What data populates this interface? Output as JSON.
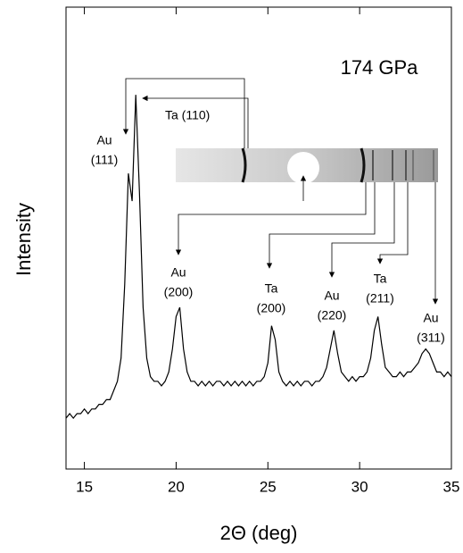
{
  "chart_data": {
    "type": "line",
    "color": "#000000",
    "xlabel": "2Θ (deg)",
    "ylabel": "Intensity",
    "annotation": "174 GPa",
    "peak_labels": [
      [
        "Ta (110)"
      ],
      [
        "Au",
        "(111)"
      ],
      [
        "Au",
        "(200)"
      ],
      [
        "Ta",
        "(200)"
      ],
      [
        "Au",
        "(220)"
      ],
      [
        "Ta",
        "(211)"
      ],
      [
        "Au",
        "(311)"
      ]
    ],
    "xlim": [
      14,
      35
    ],
    "xticks": [
      15,
      20,
      25,
      30,
      35
    ],
    "ylim": [
      0,
      100
    ],
    "x": [
      14.0,
      14.2,
      14.4,
      14.6,
      14.8,
      15.0,
      15.2,
      15.4,
      15.6,
      15.8,
      16.0,
      16.2,
      16.4,
      16.6,
      16.8,
      17.0,
      17.2,
      17.4,
      17.6,
      17.8,
      18.0,
      18.2,
      18.4,
      18.6,
      18.8,
      19.0,
      19.2,
      19.4,
      19.6,
      19.8,
      20.0,
      20.2,
      20.4,
      20.6,
      20.8,
      21.0,
      21.2,
      21.4,
      21.6,
      21.8,
      22.0,
      22.2,
      22.4,
      22.6,
      22.8,
      23.0,
      23.2,
      23.4,
      23.6,
      23.8,
      24.0,
      24.2,
      24.4,
      24.6,
      24.8,
      25.0,
      25.2,
      25.4,
      25.6,
      25.8,
      26.0,
      26.2,
      26.4,
      26.6,
      26.8,
      27.0,
      27.2,
      27.4,
      27.6,
      27.8,
      28.0,
      28.2,
      28.4,
      28.6,
      28.8,
      29.0,
      29.2,
      29.4,
      29.6,
      29.8,
      30.0,
      30.2,
      30.4,
      30.6,
      30.8,
      31.0,
      31.2,
      31.4,
      31.6,
      31.8,
      32.0,
      32.2,
      32.4,
      32.6,
      32.8,
      33.0,
      33.2,
      33.4,
      33.6,
      33.8,
      34.0,
      34.2,
      34.4,
      34.6,
      34.8,
      35.0
    ],
    "values": [
      11,
      12,
      11,
      12,
      12,
      13,
      12,
      13,
      13,
      14,
      14,
      15,
      15,
      17,
      19,
      24,
      40,
      64,
      58,
      81,
      60,
      35,
      24,
      20,
      19,
      19,
      18,
      19,
      21,
      26,
      33,
      35,
      26,
      21,
      19,
      19,
      18,
      19,
      18,
      19,
      18,
      19,
      19,
      18,
      19,
      18,
      19,
      18,
      19,
      18,
      19,
      18,
      19,
      19,
      20,
      23,
      31,
      28,
      21,
      19,
      18,
      19,
      18,
      19,
      18,
      19,
      19,
      18,
      19,
      19,
      20,
      22,
      26,
      30,
      25,
      21,
      20,
      19,
      20,
      19,
      20,
      20,
      21,
      24,
      30,
      33,
      27,
      22,
      21,
      20,
      20,
      21,
      20,
      21,
      21,
      22,
      23,
      25,
      26,
      25,
      23,
      21,
      21,
      20,
      21,
      20
    ]
  }
}
